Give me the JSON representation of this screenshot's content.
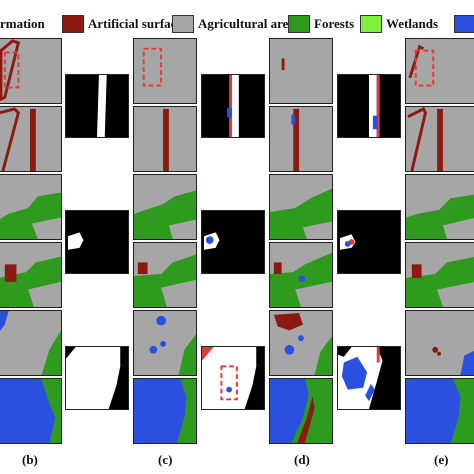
{
  "legend": {
    "items": [
      {
        "label": "rmation",
        "color": "#9a9a9a"
      },
      {
        "label": "Artificial surfaces",
        "color": "#8b1a10"
      },
      {
        "label": "Agricultural areas",
        "color": "#a6a6a6"
      },
      {
        "label": "Forests",
        "color": "#2e9b1e"
      },
      {
        "label": "Wetlands",
        "color": "#7cf23a"
      },
      {
        "label": "",
        "color": "#2b50e0"
      }
    ]
  },
  "colors": {
    "artificial": "#8b1a10",
    "agricultural": "#a6a6a6",
    "forest": "#2e9b1e",
    "water": "#2b50e0",
    "change": "#ffffff",
    "nochange": "#000000",
    "highlight_box": "#e63a3a"
  },
  "panel_labels": {
    "b": "(b)",
    "c": "(c)",
    "d": "(d)",
    "e": "(e)"
  }
}
